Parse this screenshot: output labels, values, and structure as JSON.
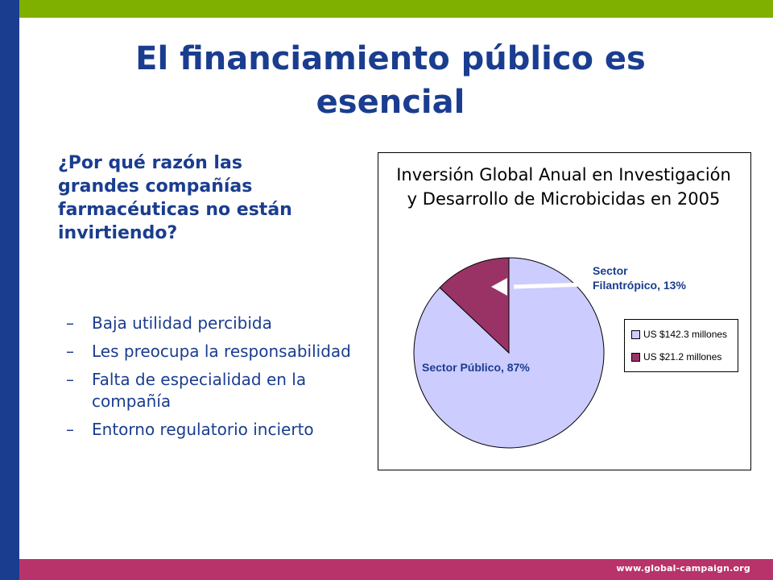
{
  "colors": {
    "top_bar": "#7fb000",
    "left_bar": "#1a3d8f",
    "bottom_bar": "#b8336a",
    "title": "#1a3d8f",
    "text": "#1a3d8f",
    "label": "#1a3d8f",
    "slice_public": "#ccccff",
    "slice_philanthropic": "#993366"
  },
  "slide": {
    "title": "El financiamiento público es esencial",
    "question": "¿Por qué razón las grandes compañías farmacéuticas no están invirtiendo?",
    "bullets": [
      {
        "dash": "–",
        "text": "Baja utilidad percibida"
      },
      {
        "dash": "–",
        "text": "Les preocupa la responsabilidad"
      },
      {
        "dash": "–",
        "text": "Falta de especialidad en la compañía"
      },
      {
        "dash": "–",
        "text": "Entorno regulatorio incierto"
      }
    ],
    "footer_url": "www.global-campaign.org"
  },
  "chart_data": {
    "type": "pie",
    "title": "Inversión Global Anual en Investigación y Desarrollo de Microbicidas en 2005",
    "slices": [
      {
        "label_line1": "Sector Público, 87%",
        "label_line2": "",
        "legend": "US $142.3 millones",
        "value": 142.3,
        "percent": 87,
        "color": "#ccccff"
      },
      {
        "label_line1": "Sector",
        "label_line2": "Filantrópico, 13%",
        "legend": "US $21.2 millones",
        "value": 21.2,
        "percent": 13,
        "color": "#993366"
      }
    ],
    "legend_position": "right"
  }
}
